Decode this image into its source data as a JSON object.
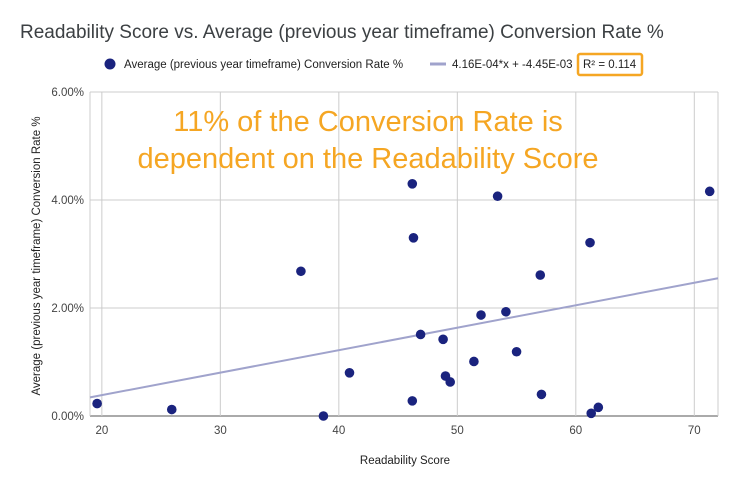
{
  "chart_data": {
    "type": "scatter",
    "title": "Readability Score vs. Average (previous year timeframe) Conversion Rate %",
    "xlabel": "Readability Score",
    "ylabel": "Average (previous year timeframe) Conversion Rate %",
    "xlim": [
      19,
      72
    ],
    "ylim": [
      0,
      0.06
    ],
    "x_ticks": [
      20,
      30,
      40,
      50,
      60,
      70
    ],
    "y_ticks": [
      0,
      0.02,
      0.04,
      0.06
    ],
    "x_tick_labels": [
      "20",
      "30",
      "40",
      "50",
      "60",
      "70"
    ],
    "y_tick_labels": [
      "0.00%",
      "2.00%",
      "4.00%",
      "6.00%"
    ],
    "grid": true,
    "legend_position": "top",
    "series": [
      {
        "name": "Average (previous year timeframe) Conversion Rate %",
        "color": "#1a237e",
        "points": [
          [
            19.6,
            0.0023
          ],
          [
            25.9,
            0.0012
          ],
          [
            36.8,
            0.0268
          ],
          [
            38.7,
            0.0
          ],
          [
            40.9,
            0.008
          ],
          [
            46.2,
            0.043
          ],
          [
            46.3,
            0.033
          ],
          [
            46.2,
            0.0028
          ],
          [
            46.9,
            0.0151
          ],
          [
            48.8,
            0.0142
          ],
          [
            49.0,
            0.0074
          ],
          [
            49.4,
            0.0063
          ],
          [
            51.4,
            0.0101
          ],
          [
            52.0,
            0.0187
          ],
          [
            53.4,
            0.0407
          ],
          [
            54.1,
            0.0193
          ],
          [
            55.0,
            0.0119
          ],
          [
            57.0,
            0.0261
          ],
          [
            57.1,
            0.004
          ],
          [
            61.2,
            0.0321
          ],
          [
            61.3,
            0.0005
          ],
          [
            61.9,
            0.0016
          ],
          [
            71.3,
            0.0416
          ]
        ]
      }
    ],
    "trendline": {
      "label": "4.16E-04*x + -4.45E-03",
      "r2_label": "R² = 0.114",
      "slope": 0.000416,
      "intercept": -0.00445,
      "color": "#a0a3cc"
    },
    "annotation": {
      "lines": [
        "11% of the Conversion Rate is",
        "dependent on the Readability Score"
      ],
      "color": "#f5a623"
    }
  }
}
